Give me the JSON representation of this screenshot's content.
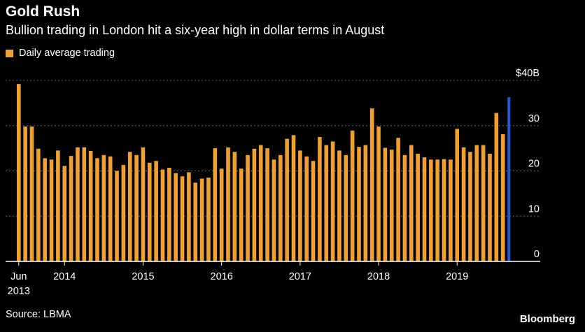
{
  "header": {
    "title": "Gold Rush",
    "subtitle": "Bullion trading in London hit a six-year high in dollar terms in August"
  },
  "legend": {
    "label": "Daily average trading"
  },
  "footer": {
    "source": "Source: LBMA",
    "brand": "Bloomberg"
  },
  "colors": {
    "bar": "#f0a030",
    "highlight": "#1f5bd6",
    "grid": "#666666",
    "axis": "#ffffff"
  },
  "chart_data": {
    "type": "bar",
    "ylim": [
      0,
      40
    ],
    "yticks": [
      {
        "value": 0,
        "label": "0"
      },
      {
        "value": 10,
        "label": "10"
      },
      {
        "value": 20,
        "label": "20"
      },
      {
        "value": 30,
        "label": "30"
      },
      {
        "value": 40,
        "label": "$40B"
      }
    ],
    "xticks": [
      {
        "index": 0,
        "label": "Jun",
        "label2": "2013"
      },
      {
        "index": 7,
        "label": "2014"
      },
      {
        "index": 19,
        "label": "2015"
      },
      {
        "index": 31,
        "label": "2016"
      },
      {
        "index": 43,
        "label": "2017"
      },
      {
        "index": 55,
        "label": "2018"
      },
      {
        "index": 67,
        "label": "2019"
      }
    ],
    "series": [
      {
        "name": "Daily average trading",
        "values": [
          39.2,
          29.8,
          29.8,
          24.9,
          22.8,
          22.5,
          24.5,
          21.1,
          23.3,
          25.2,
          25.2,
          24.4,
          22.8,
          23.5,
          23.2,
          20.0,
          21.3,
          24.2,
          23.5,
          25.2,
          21.8,
          22.2,
          20.3,
          20.7,
          19.5,
          18.8,
          19.7,
          17.4,
          18.3,
          18.5,
          25.0,
          20.5,
          25.2,
          24.2,
          20.5,
          23.5,
          24.9,
          25.7,
          25.0,
          22.5,
          23.5,
          27.1,
          27.9,
          24.5,
          23.2,
          22.2,
          27.5,
          25.7,
          26.5,
          24.5,
          23.5,
          28.9,
          25.3,
          25.7,
          33.8,
          29.8,
          25.1,
          24.7,
          27.3,
          23.5,
          25.7,
          23.8,
          23.0,
          22.5,
          22.5,
          22.6,
          22.5,
          29.3,
          25.2,
          24.2,
          25.7,
          25.7,
          23.8,
          32.8,
          28.1,
          36.3
        ]
      }
    ],
    "highlight_index": 75
  }
}
